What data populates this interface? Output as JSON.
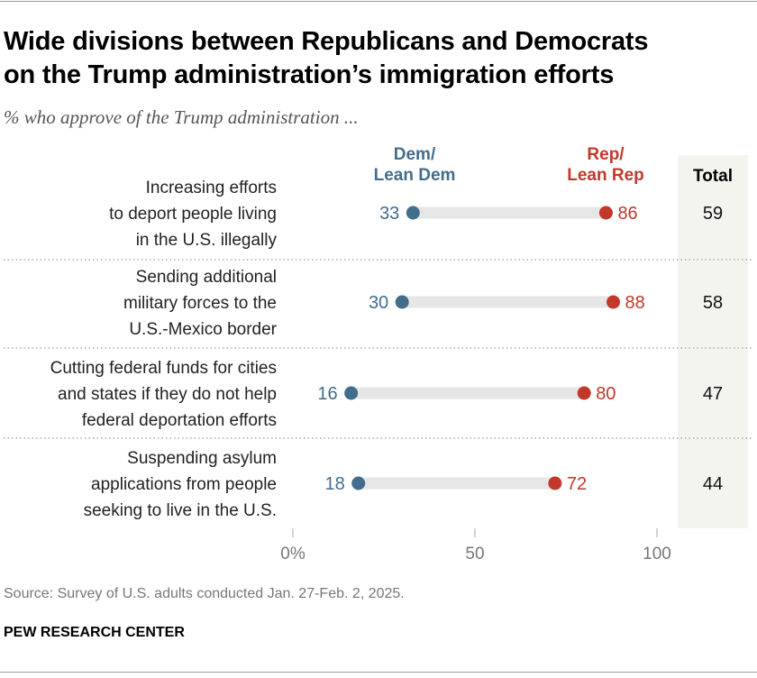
{
  "title_line1": "Wide divisions between Republicans and Democrats",
  "title_line2": "on the Trump administration’s immigration efforts",
  "subtitle": "% who approve of the Trump administration ...",
  "source": "Source: Survey of U.S. adults conducted Jan. 27-Feb. 2, 2025.",
  "organization": "PEW RESEARCH CENTER",
  "colors": {
    "dem": "#436d8c",
    "rep": "#c0392b",
    "bar": "#e6e6e6",
    "total_bg": "#f4f4ef"
  },
  "chart_data": {
    "type": "dot-range",
    "xlim": [
      0,
      100
    ],
    "xticks": [
      "0%",
      "50",
      "100"
    ],
    "xtick_values": [
      0,
      50,
      100
    ],
    "series": [
      {
        "name_line1": "Dem/",
        "name_line2": "Lean Dem",
        "values": [
          33,
          30,
          16,
          18
        ]
      },
      {
        "name_line1": "Rep/",
        "name_line2": "Lean Rep",
        "values": [
          86,
          88,
          80,
          72
        ]
      }
    ],
    "total_label": "Total",
    "totals": [
      59,
      58,
      47,
      44
    ],
    "categories": [
      [
        "Increasing efforts",
        "to deport people living",
        "in the U.S. illegally"
      ],
      [
        "Sending additional",
        "military forces to the",
        "U.S.-Mexico border"
      ],
      [
        "Cutting federal funds for cities",
        "and states if they do not help",
        "federal deportation efforts"
      ],
      [
        "Suspending asylum",
        "applications from people",
        "seeking to live in the U.S."
      ]
    ]
  }
}
